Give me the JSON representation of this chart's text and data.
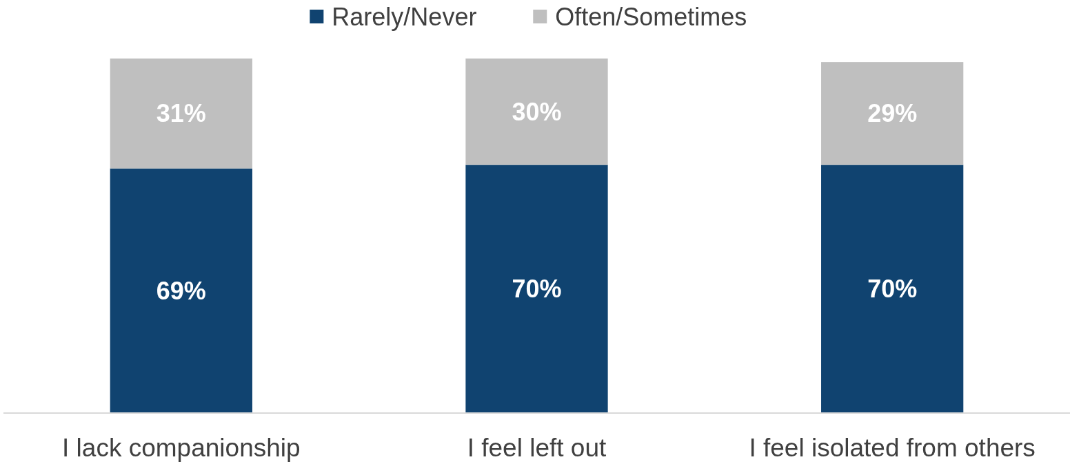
{
  "chart_data": {
    "type": "bar",
    "stacked": true,
    "categories": [
      "I lack companionship",
      "I feel left out",
      "I feel isolated from others"
    ],
    "series": [
      {
        "name": "Rarely/Never",
        "color": "#104370",
        "values": [
          69,
          70,
          70
        ],
        "value_labels": [
          "69%",
          "70%",
          "70%"
        ]
      },
      {
        "name": "Often/Sometimes",
        "color": "#bfbfbf",
        "values": [
          31,
          30,
          29
        ],
        "value_labels": [
          "31%",
          "30%",
          "29%"
        ]
      }
    ],
    "legend": "top",
    "tick_labels": "x"
  }
}
